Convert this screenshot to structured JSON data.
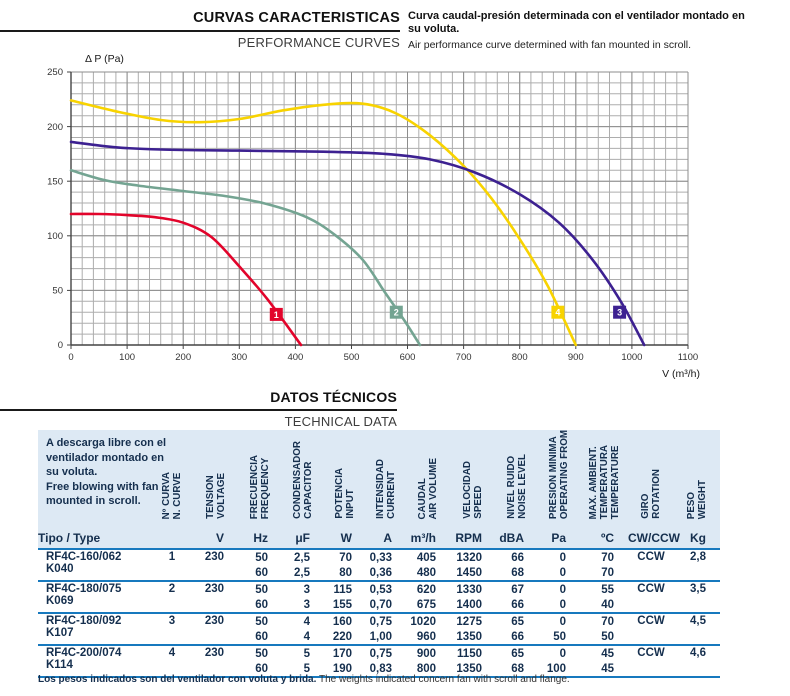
{
  "sections": {
    "curves": {
      "title_es": "CURVAS CARACTERISTICAS",
      "title_en": "PERFORMANCE CURVES",
      "desc_es": "Curva caudal-presión determinada con el ventilador montado en su voluta.",
      "desc_en": "Air performance curve determined with fan mounted in scroll."
    },
    "technical": {
      "title_es": "DATOS TÉCNICOS",
      "title_en": "TECHNICAL DATA"
    }
  },
  "footnote_es": "Los pesos indicados son del ventilador con voluta y brida.",
  "footnote_en": "The weights indicated concern fan with scroll and flange.",
  "chart_data": {
    "type": "line",
    "title": "",
    "ylabel": "Δ P (Pa)",
    "xlabel": "V (m³/h)",
    "xlim": [
      0,
      1100
    ],
    "ylim": [
      0,
      250
    ],
    "x_ticks": [
      0,
      100,
      200,
      300,
      400,
      500,
      600,
      700,
      800,
      900,
      1000,
      1100
    ],
    "y_ticks": [
      0,
      50,
      100,
      150,
      200,
      250
    ],
    "grid": {
      "on": true,
      "minor_x": 20,
      "minor_y": 10
    },
    "series": [
      {
        "name": "4",
        "color": "#f8d300",
        "label_pos": [
          868,
          30
        ],
        "points": [
          [
            0,
            224
          ],
          [
            80,
            214
          ],
          [
            160,
            206
          ],
          [
            230,
            204
          ],
          [
            300,
            207
          ],
          [
            380,
            215
          ],
          [
            450,
            220
          ],
          [
            520,
            221
          ],
          [
            580,
            212
          ],
          [
            640,
            192
          ],
          [
            700,
            164
          ],
          [
            750,
            134
          ],
          [
            800,
            97
          ],
          [
            850,
            54
          ],
          [
            900,
            0
          ]
        ]
      },
      {
        "name": "2",
        "color": "#74a492",
        "label_pos": [
          580,
          30
        ],
        "points": [
          [
            0,
            160
          ],
          [
            60,
            151
          ],
          [
            120,
            146
          ],
          [
            200,
            141
          ],
          [
            280,
            136
          ],
          [
            350,
            129
          ],
          [
            420,
            117
          ],
          [
            470,
            101
          ],
          [
            520,
            78
          ],
          [
            560,
            48
          ],
          [
            595,
            22
          ],
          [
            622,
            0
          ]
        ]
      },
      {
        "name": "1",
        "color": "#e2042b",
        "label_pos": [
          366,
          28
        ],
        "points": [
          [
            0,
            120
          ],
          [
            50,
            120
          ],
          [
            100,
            119
          ],
          [
            150,
            117
          ],
          [
            200,
            112
          ],
          [
            250,
            99
          ],
          [
            300,
            72
          ],
          [
            350,
            42
          ],
          [
            410,
            0
          ]
        ]
      },
      {
        "name": "3",
        "color": "#3d2191",
        "label_pos": [
          978,
          30
        ],
        "points": [
          [
            0,
            186
          ],
          [
            80,
            181
          ],
          [
            160,
            179
          ],
          [
            300,
            178
          ],
          [
            450,
            177
          ],
          [
            560,
            175
          ],
          [
            640,
            170
          ],
          [
            720,
            158
          ],
          [
            800,
            138
          ],
          [
            870,
            112
          ],
          [
            930,
            78
          ],
          [
            980,
            40
          ],
          [
            1022,
            0
          ]
        ]
      }
    ]
  },
  "table": {
    "intro_lines": [
      "A descarga libre con el",
      "ventilador montado en",
      "su voluta.",
      "Free blowing with fan",
      "mounted in scroll."
    ],
    "type_header": "Tipo / Type",
    "columns": [
      {
        "lines": [
          "Nº CURVA",
          "N. CURVE"
        ],
        "unit": "",
        "align": "ctr"
      },
      {
        "lines": [
          "TENSION",
          "VOLTAGE"
        ],
        "unit": "V",
        "align": "num"
      },
      {
        "lines": [
          "FRECUENCIA",
          "FREQUENCY"
        ],
        "unit": "Hz",
        "align": "num"
      },
      {
        "lines": [
          "CONDENSADOR",
          "CAPACITOR"
        ],
        "unit": "μF",
        "align": "num"
      },
      {
        "lines": [
          "POTENCIA",
          "INPUT"
        ],
        "unit": "W",
        "align": "num"
      },
      {
        "lines": [
          "INTENSIDAD",
          "CURRENT"
        ],
        "unit": "A",
        "align": "num"
      },
      {
        "lines": [
          "CAUDAL",
          "AIR VOLUME"
        ],
        "unit": "m³/h",
        "align": "num"
      },
      {
        "lines": [
          "VELOCIDAD",
          "SPEED"
        ],
        "unit": "RPM",
        "align": "num"
      },
      {
        "lines": [
          "NIVEL RUIDO",
          "NOISE LEVEL"
        ],
        "unit": "dBA",
        "align": "num"
      },
      {
        "lines": [
          "PRESION MINIMA",
          "OPERATING FROM"
        ],
        "unit": "Pa",
        "align": "num"
      },
      {
        "lines": [
          "MAX. AMBIENT.",
          "TEMPERATURA",
          "TEMPERATURE"
        ],
        "unit": "ºC",
        "align": "num"
      },
      {
        "lines": [
          "GIRO",
          "ROTATION"
        ],
        "unit": "CW/CCW",
        "align": "ctr"
      },
      {
        "lines": [
          "PESO",
          "WEIGHT"
        ],
        "unit": "Kg",
        "align": "num"
      }
    ],
    "rows": [
      {
        "type": "RF4C-160/062 K040",
        "curve": "1",
        "voltage": "230",
        "rotation": "CCW",
        "weight": "2,8",
        "lines": [
          {
            "hz": "50",
            "uf": "2,5",
            "w": "70",
            "a": "0,33",
            "m3h": "405",
            "rpm": "1320",
            "dba": "66",
            "pa": "0",
            "c": "70"
          },
          {
            "hz": "60",
            "uf": "2,5",
            "w": "80",
            "a": "0,36",
            "m3h": "480",
            "rpm": "1450",
            "dba": "68",
            "pa": "0",
            "c": "70"
          }
        ]
      },
      {
        "type": "RF4C-180/075 K069",
        "curve": "2",
        "voltage": "230",
        "rotation": "CCW",
        "weight": "3,5",
        "lines": [
          {
            "hz": "50",
            "uf": "3",
            "w": "115",
            "a": "0,53",
            "m3h": "620",
            "rpm": "1330",
            "dba": "67",
            "pa": "0",
            "c": "55"
          },
          {
            "hz": "60",
            "uf": "3",
            "w": "155",
            "a": "0,70",
            "m3h": "675",
            "rpm": "1400",
            "dba": "66",
            "pa": "0",
            "c": "40"
          }
        ]
      },
      {
        "type": "RF4C-180/092 K107",
        "curve": "3",
        "voltage": "230",
        "rotation": "CCW",
        "weight": "4,5",
        "lines": [
          {
            "hz": "50",
            "uf": "4",
            "w": "160",
            "a": "0,75",
            "m3h": "1020",
            "rpm": "1275",
            "dba": "65",
            "pa": "0",
            "c": "70"
          },
          {
            "hz": "60",
            "uf": "4",
            "w": "220",
            "a": "1,00",
            "m3h": "960",
            "rpm": "1350",
            "dba": "66",
            "pa": "50",
            "c": "50"
          }
        ]
      },
      {
        "type": "RF4C-200/074 K114",
        "curve": "4",
        "voltage": "230",
        "rotation": "CCW",
        "weight": "4,6",
        "lines": [
          {
            "hz": "50",
            "uf": "5",
            "w": "170",
            "a": "0,75",
            "m3h": "900",
            "rpm": "1150",
            "dba": "65",
            "pa": "0",
            "c": "45"
          },
          {
            "hz": "60",
            "uf": "5",
            "w": "190",
            "a": "0,83",
            "m3h": "800",
            "rpm": "1350",
            "dba": "68",
            "pa": "100",
            "c": "45"
          }
        ]
      }
    ]
  }
}
